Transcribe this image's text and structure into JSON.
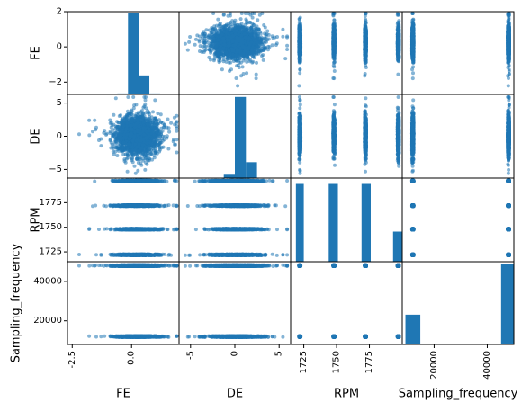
{
  "chart_data": {
    "type": "scatter",
    "plot_kind": "scatter-matrix",
    "variables": [
      "FE",
      "DE",
      "RPM",
      "Sampling_frequency"
    ],
    "series_color": "#1f77b4",
    "ranges": {
      "FE": [
        -2.7,
        2.0
      ],
      "DE": [
        -6.3,
        6.3
      ],
      "RPM": [
        1715,
        1800
      ],
      "Sampling_frequency": [
        8000,
        50000
      ]
    },
    "rpm_levels": [
      1722,
      1748,
      1772,
      1797
    ],
    "sampling_levels": [
      12000,
      48000
    ],
    "x_ticks": {
      "FE": [
        {
          "value": -2.5,
          "label": "-2.5"
        },
        {
          "value": 0.0,
          "label": "0.0"
        }
      ],
      "DE": [
        {
          "value": -5,
          "label": "-5"
        },
        {
          "value": 0,
          "label": "0"
        },
        {
          "value": 5,
          "label": "5"
        }
      ],
      "RPM": [
        {
          "value": 1725,
          "label": "1725"
        },
        {
          "value": 1750,
          "label": "1750"
        },
        {
          "value": 1775,
          "label": "1775"
        }
      ],
      "Sampling_frequency": [
        {
          "value": 20000,
          "label": "20000"
        },
        {
          "value": 40000,
          "label": "40000"
        }
      ]
    },
    "y_ticks": {
      "FE": [
        {
          "value": 2,
          "label": "2"
        },
        {
          "value": 0,
          "label": "0"
        },
        {
          "value": -2,
          "label": "−2"
        }
      ],
      "DE": [
        {
          "value": 5,
          "label": "5"
        },
        {
          "value": 0,
          "label": "0"
        },
        {
          "value": -5,
          "label": "−5"
        }
      ],
      "RPM": [
        {
          "value": 1775,
          "label": "1775"
        },
        {
          "value": 1750,
          "label": "1750"
        },
        {
          "value": 1725,
          "label": "1725"
        }
      ],
      "Sampling_frequency": [
        {
          "value": 40000,
          "label": "40000"
        },
        {
          "value": 20000,
          "label": "20000"
        }
      ]
    },
    "histograms": {
      "FE": [
        {
          "x0": -0.6,
          "x1": -0.15,
          "freq": 0.012
        },
        {
          "x0": -0.15,
          "x1": 0.3,
          "freq": 0.98
        },
        {
          "x0": 0.3,
          "x1": 0.75,
          "freq": 0.23
        },
        {
          "x0": 0.75,
          "x1": 1.2,
          "freq": 0.012
        }
      ],
      "DE": [
        {
          "x0": -5.0,
          "x1": -1.25,
          "freq": 0.004
        },
        {
          "x0": -1.25,
          "x1": 0.0,
          "freq": 0.04
        },
        {
          "x0": 0.0,
          "x1": 1.25,
          "freq": 0.97
        },
        {
          "x0": 1.25,
          "x1": 2.5,
          "freq": 0.19
        },
        {
          "x0": 2.5,
          "x1": 5.0,
          "freq": 0.004
        }
      ],
      "RPM": [
        {
          "x0": 1719,
          "x1": 1725,
          "freq": 0.93
        },
        {
          "x0": 1744,
          "x1": 1751,
          "freq": 0.93
        },
        {
          "x0": 1769,
          "x1": 1776,
          "freq": 0.93
        },
        {
          "x0": 1793,
          "x1": 1800,
          "freq": 0.36
        }
      ],
      "Sampling_frequency": [
        {
          "x0": 9200,
          "x1": 14800,
          "freq": 0.36
        },
        {
          "x0": 45200,
          "x1": 50000,
          "freq": 0.97
        }
      ]
    }
  }
}
